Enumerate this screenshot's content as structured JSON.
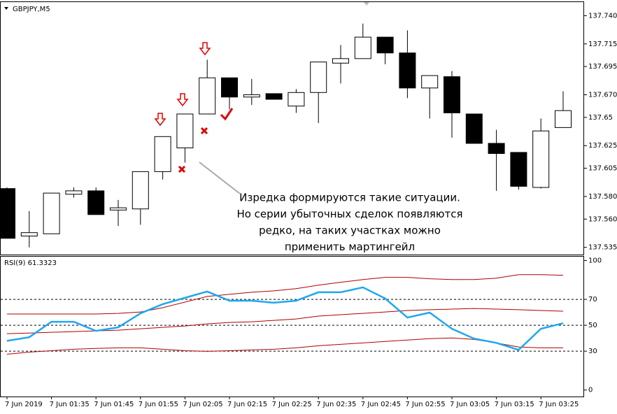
{
  "chart_data": [
    {
      "type": "candlestick",
      "title": "GBPJPY,M5",
      "categories": [
        "7 Jun 2019",
        null,
        "7 Jun 01:35",
        null,
        "7 Jun 01:45",
        null,
        "7 Jun 01:55",
        null,
        "7 Jun 02:05",
        null,
        "7 Jun 02:15",
        null,
        "7 Jun 02:25",
        null,
        "7 Jun 02:35",
        null,
        "7 Jun 02:45",
        null,
        "7 Jun 02:55",
        null,
        "7 Jun 03:05",
        null,
        "7 Jun 03:15",
        null,
        "7 Jun 03:25",
        null
      ],
      "open": [
        137.587,
        137.545,
        137.547,
        137.582,
        137.585,
        137.568,
        137.569,
        137.602,
        137.623,
        137.653,
        137.685,
        137.668,
        137.671,
        137.66,
        137.672,
        137.698,
        137.702,
        137.721,
        137.707,
        137.676,
        137.686,
        137.653,
        137.627,
        137.619,
        137.588,
        137.641
      ],
      "high": [
        137.588,
        137.567,
        137.583,
        137.588,
        137.588,
        137.577,
        137.602,
        137.633,
        137.653,
        137.701,
        137.685,
        137.684,
        137.671,
        137.675,
        137.699,
        137.714,
        137.733,
        137.721,
        137.727,
        137.687,
        137.691,
        137.653,
        137.639,
        137.619,
        137.649,
        137.673
      ],
      "low": [
        137.543,
        137.535,
        137.547,
        137.579,
        137.564,
        137.554,
        137.555,
        137.595,
        137.61,
        137.653,
        137.657,
        137.661,
        137.666,
        137.654,
        137.645,
        137.68,
        137.702,
        137.697,
        137.667,
        137.649,
        137.632,
        137.627,
        137.585,
        137.586,
        137.587,
        137.641
      ],
      "close": [
        137.543,
        137.548,
        137.583,
        137.585,
        137.564,
        137.57,
        137.602,
        137.633,
        137.653,
        137.685,
        137.668,
        137.67,
        137.666,
        137.672,
        137.699,
        137.702,
        137.721,
        137.707,
        137.676,
        137.687,
        137.654,
        137.627,
        137.618,
        137.589,
        137.638,
        137.656
      ],
      "up_color": "#ffffff",
      "down_color": "#000000",
      "ylim": [
        137.528,
        137.752
      ],
      "yticks": [
        137.535,
        {
          "value": 137.56,
          "label": "137.560"
        },
        {
          "value": 137.58,
          "label": "137.580"
        },
        137.605,
        137.625,
        137.65,
        {
          "value": 137.67,
          "label": "137.670"
        },
        137.695,
        137.715,
        {
          "value": 137.74,
          "label": "137.740"
        }
      ],
      "annotation": [
        "Изредка формируются такие ситуации.",
        "Но серии убыточных сделок появляются",
        "редко, на таких участках можно",
        "применить мартингейл"
      ]
    },
    {
      "type": "line",
      "title": "RSI(9) 61.3323",
      "series": [
        {
          "color": "#1ea7f0",
          "values": [
            38.0,
            40.8,
            52.7,
            52.7,
            45.7,
            48.4,
            59.2,
            66.3,
            71.2,
            76.1,
            69.0,
            69.0,
            67.4,
            69.0,
            75.5,
            75.5,
            79.3,
            70.7,
            56.0,
            59.8,
            47.3,
            39.7,
            36.4,
            31.0,
            47.3,
            51.6
          ]
        },
        {
          "color": "#b00000",
          "values": [
            58.7,
            58.7,
            58.7,
            58.7,
            58.7,
            59.2,
            60.3,
            63.6,
            67.9,
            72.3,
            73.9,
            75.5,
            76.6,
            78.3,
            81.0,
            83.2,
            85.3,
            87.0,
            87.0,
            85.9,
            85.3,
            85.3,
            86.4,
            89.1,
            89.1,
            88.6
          ]
        },
        {
          "color": "#b00000",
          "values": [
            43.5,
            44.0,
            44.6,
            45.1,
            45.7,
            46.2,
            47.3,
            48.4,
            49.5,
            51.1,
            52.2,
            52.7,
            53.8,
            54.9,
            57.1,
            58.2,
            59.2,
            60.3,
            61.4,
            62.0,
            62.5,
            63.0,
            62.5,
            62.0,
            61.4,
            60.9
          ]
        },
        {
          "color": "#b00000",
          "values": [
            27.7,
            29.3,
            30.4,
            31.5,
            32.1,
            32.6,
            32.6,
            31.5,
            30.4,
            29.9,
            30.4,
            31.0,
            31.5,
            32.6,
            34.2,
            35.3,
            36.4,
            37.5,
            38.6,
            39.7,
            40.2,
            39.1,
            36.4,
            33.2,
            32.6,
            32.6
          ]
        }
      ],
      "ylim": [
        -5,
        103
      ],
      "yticks": [
        0,
        30,
        50,
        70,
        100
      ],
      "levels": [
        30,
        50,
        70
      ]
    }
  ]
}
